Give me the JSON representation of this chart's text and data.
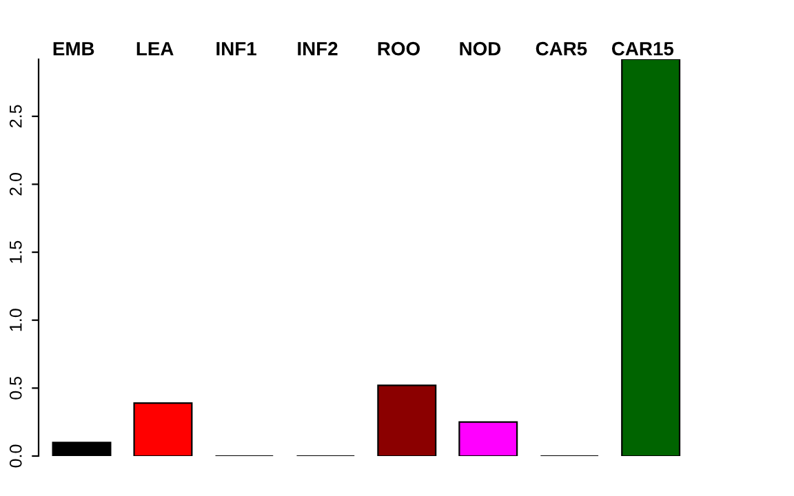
{
  "chart_data": {
    "type": "bar",
    "categories": [
      "EMB",
      "LEA",
      "INF1",
      "INF2",
      "ROO",
      "NOD",
      "CAR5",
      "CAR15"
    ],
    "values": [
      0.1,
      0.39,
      0,
      0,
      0.52,
      0.25,
      0,
      2.92
    ],
    "colors": [
      "#000000",
      "#ff0000",
      "#000000",
      "#000000",
      "#8b0000",
      "#ff00ff",
      "#000000",
      "#006400"
    ],
    "ylim": [
      0,
      2.92
    ],
    "yticks": [
      {
        "value": 0,
        "label": "0.0"
      },
      {
        "value": 0.5,
        "label": "0.5"
      },
      {
        "value": 1,
        "label": "1.0"
      },
      {
        "value": 1.5,
        "label": "1.5"
      },
      {
        "value": 2,
        "label": "2.0"
      },
      {
        "value": 2.5,
        "label": "2.5"
      }
    ],
    "grid": false,
    "legend": false
  }
}
